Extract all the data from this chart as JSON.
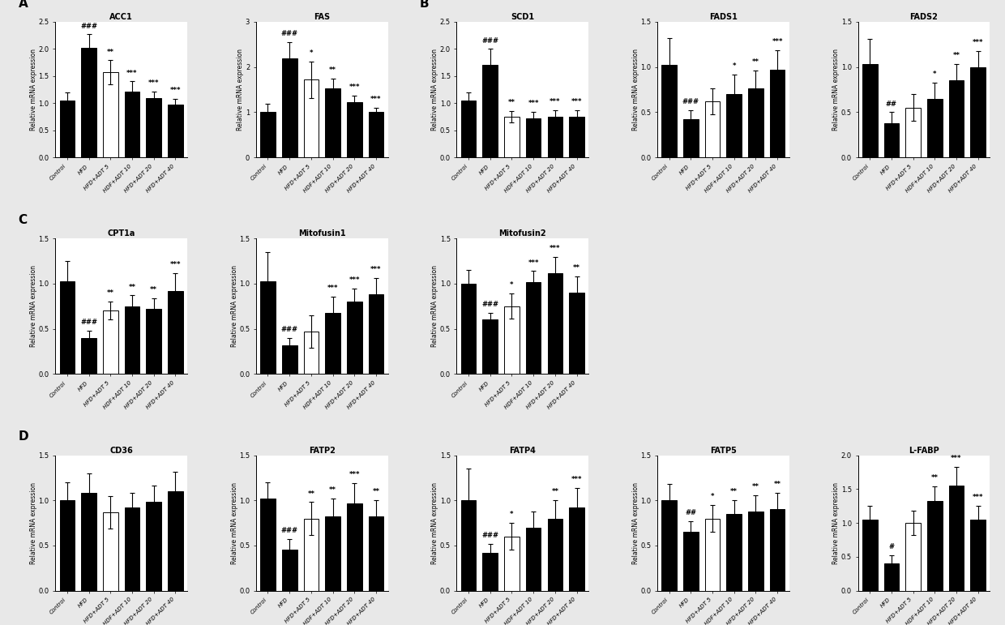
{
  "sections": {
    "A": {
      "charts": [
        {
          "title": "ACC1",
          "ylabel": "Relative mRNA expression",
          "ylim": [
            0,
            2.5
          ],
          "yticks": [
            0.0,
            0.5,
            1.0,
            1.5,
            2.0,
            2.5
          ],
          "bars": [
            1.05,
            2.02,
            1.57,
            1.22,
            1.1,
            0.98
          ],
          "errors": [
            0.15,
            0.25,
            0.22,
            0.18,
            0.12,
            0.1
          ],
          "colors": [
            "black",
            "black",
            "white",
            "black",
            "black",
            "black"
          ],
          "stars_above": [
            "",
            "###",
            "**",
            "***",
            "***",
            "***"
          ]
        },
        {
          "title": "FAS",
          "ylabel": "Relative mRNA expression",
          "ylim": [
            0,
            3.0
          ],
          "yticks": [
            0,
            1,
            2,
            3
          ],
          "bars": [
            1.0,
            2.2,
            1.72,
            1.52,
            1.22,
            1.0
          ],
          "errors": [
            0.18,
            0.35,
            0.4,
            0.22,
            0.15,
            0.1
          ],
          "colors": [
            "black",
            "black",
            "white",
            "black",
            "black",
            "black"
          ],
          "stars_above": [
            "",
            "###",
            "*",
            "**",
            "***",
            "***"
          ]
        }
      ]
    },
    "B": {
      "charts": [
        {
          "title": "SCD1",
          "ylabel": "Relative mRNA expression",
          "ylim": [
            0,
            2.5
          ],
          "yticks": [
            0.0,
            0.5,
            1.0,
            1.5,
            2.0,
            2.5
          ],
          "bars": [
            1.05,
            1.7,
            0.75,
            0.72,
            0.75,
            0.75
          ],
          "errors": [
            0.15,
            0.3,
            0.1,
            0.12,
            0.12,
            0.12
          ],
          "colors": [
            "black",
            "black",
            "white",
            "black",
            "black",
            "black"
          ],
          "stars_above": [
            "",
            "###",
            "**",
            "***",
            "***",
            "***"
          ]
        },
        {
          "title": "FADS1",
          "ylabel": "Relative mRNA expression",
          "ylim": [
            0,
            1.5
          ],
          "yticks": [
            0.0,
            0.5,
            1.0,
            1.5
          ],
          "bars": [
            1.02,
            0.42,
            0.62,
            0.7,
            0.76,
            0.97
          ],
          "errors": [
            0.3,
            0.1,
            0.14,
            0.22,
            0.2,
            0.22
          ],
          "colors": [
            "black",
            "black",
            "white",
            "black",
            "black",
            "black"
          ],
          "stars_above": [
            "",
            "###",
            "",
            "*",
            "**",
            "***"
          ]
        },
        {
          "title": "FADS2",
          "ylabel": "Relative mRNA expression",
          "ylim": [
            0,
            1.5
          ],
          "yticks": [
            0.0,
            0.5,
            1.0,
            1.5
          ],
          "bars": [
            1.03,
            0.38,
            0.55,
            0.65,
            0.85,
            1.0
          ],
          "errors": [
            0.28,
            0.12,
            0.15,
            0.18,
            0.18,
            0.18
          ],
          "colors": [
            "black",
            "black",
            "white",
            "black",
            "black",
            "black"
          ],
          "stars_above": [
            "",
            "##",
            "",
            "*",
            "**",
            "***"
          ]
        }
      ]
    },
    "C": {
      "charts": [
        {
          "title": "CPT1a",
          "ylabel": "Relative mRNA expression",
          "ylim": [
            0,
            1.5
          ],
          "yticks": [
            0.0,
            0.5,
            1.0,
            1.5
          ],
          "bars": [
            1.03,
            0.4,
            0.7,
            0.75,
            0.72,
            0.92
          ],
          "errors": [
            0.22,
            0.08,
            0.1,
            0.12,
            0.12,
            0.2
          ],
          "colors": [
            "black",
            "black",
            "white",
            "black",
            "black",
            "black"
          ],
          "stars_above": [
            "",
            "###",
            "**",
            "**",
            "**",
            "***"
          ]
        },
        {
          "title": "Mitofusin1",
          "ylabel": "Relative mRNA expression",
          "ylim": [
            0,
            1.5
          ],
          "yticks": [
            0.0,
            0.5,
            1.0,
            1.5
          ],
          "bars": [
            1.03,
            0.32,
            0.47,
            0.68,
            0.8,
            0.88
          ],
          "errors": [
            0.32,
            0.08,
            0.18,
            0.18,
            0.15,
            0.18
          ],
          "colors": [
            "black",
            "black",
            "white",
            "black",
            "black",
            "black"
          ],
          "stars_above": [
            "",
            "###",
            "",
            "***",
            "***",
            "***"
          ]
        },
        {
          "title": "Mitofusin2",
          "ylabel": "Relative mRNA expression",
          "ylim": [
            0,
            1.5
          ],
          "yticks": [
            0.0,
            0.5,
            1.0,
            1.5
          ],
          "bars": [
            1.0,
            0.6,
            0.75,
            1.02,
            1.12,
            0.9
          ],
          "errors": [
            0.15,
            0.08,
            0.14,
            0.12,
            0.18,
            0.18
          ],
          "colors": [
            "black",
            "black",
            "white",
            "black",
            "black",
            "black"
          ],
          "stars_above": [
            "",
            "###",
            "*",
            "***",
            "***",
            "**"
          ]
        }
      ]
    },
    "D": {
      "charts": [
        {
          "title": "CD36",
          "ylabel": "Relative mRNA expression",
          "ylim": [
            0,
            1.5
          ],
          "yticks": [
            0.0,
            0.5,
            1.0,
            1.5
          ],
          "bars": [
            1.0,
            1.08,
            0.87,
            0.92,
            0.98,
            1.1
          ],
          "errors": [
            0.2,
            0.22,
            0.18,
            0.16,
            0.18,
            0.22
          ],
          "colors": [
            "black",
            "black",
            "white",
            "black",
            "black",
            "black"
          ],
          "stars_above": [
            "",
            "",
            "",
            "",
            "",
            ""
          ]
        },
        {
          "title": "FATP2",
          "ylabel": "Relative mRNA expression",
          "ylim": [
            0,
            1.5
          ],
          "yticks": [
            0.0,
            0.5,
            1.0,
            1.5
          ],
          "bars": [
            1.02,
            0.45,
            0.8,
            0.82,
            0.97,
            0.82
          ],
          "errors": [
            0.18,
            0.12,
            0.18,
            0.2,
            0.22,
            0.18
          ],
          "colors": [
            "black",
            "black",
            "white",
            "black",
            "black",
            "black"
          ],
          "stars_above": [
            "",
            "###",
            "**",
            "**",
            "***",
            "**"
          ]
        },
        {
          "title": "FATP4",
          "ylabel": "Relative mRNA expression",
          "ylim": [
            0,
            1.5
          ],
          "yticks": [
            0.0,
            0.5,
            1.0,
            1.5
          ],
          "bars": [
            1.0,
            0.42,
            0.6,
            0.7,
            0.8,
            0.92
          ],
          "errors": [
            0.35,
            0.1,
            0.15,
            0.18,
            0.2,
            0.22
          ],
          "colors": [
            "black",
            "black",
            "white",
            "black",
            "black",
            "black"
          ],
          "stars_above": [
            "",
            "###",
            "*",
            "",
            "**",
            "***"
          ]
        },
        {
          "title": "FATP5",
          "ylabel": "Relative mRNA expression",
          "ylim": [
            0,
            1.5
          ],
          "yticks": [
            0.0,
            0.5,
            1.0,
            1.5
          ],
          "bars": [
            1.0,
            0.65,
            0.8,
            0.85,
            0.88,
            0.9
          ],
          "errors": [
            0.18,
            0.12,
            0.15,
            0.15,
            0.18,
            0.18
          ],
          "colors": [
            "black",
            "black",
            "white",
            "black",
            "black",
            "black"
          ],
          "stars_above": [
            "",
            "##",
            "*",
            "**",
            "**",
            "**"
          ]
        },
        {
          "title": "L-FABP",
          "ylabel": "Relative mRNA expression",
          "ylim": [
            0,
            2.0
          ],
          "yticks": [
            0.0,
            0.5,
            1.0,
            1.5,
            2.0
          ],
          "bars": [
            1.05,
            0.4,
            1.0,
            1.32,
            1.55,
            1.05
          ],
          "errors": [
            0.2,
            0.12,
            0.18,
            0.22,
            0.28,
            0.2
          ],
          "colors": [
            "black",
            "black",
            "white",
            "black",
            "black",
            "black"
          ],
          "stars_above": [
            "",
            "#",
            "",
            "**",
            "***",
            "***"
          ]
        }
      ]
    }
  },
  "xticklabels": [
    "Control",
    "HFD",
    "HFD+ADT 5",
    "HDF+ADT 10",
    "HFD+ADT 20",
    "HFD+ADT 40"
  ],
  "bar_width": 0.7,
  "background_color": "#ffffff",
  "fig_background": "#e8e8e8",
  "bar_edge_color": "black",
  "bar_edge_width": 0.7,
  "error_cap_size": 2.5,
  "error_line_width": 0.8,
  "fontsize_title": 7,
  "fontsize_ylabel": 5.5,
  "fontsize_xtick": 5,
  "fontsize_ytick": 6,
  "fontsize_stars": 6,
  "fontsize_section": 11,
  "section_label_color": "black"
}
